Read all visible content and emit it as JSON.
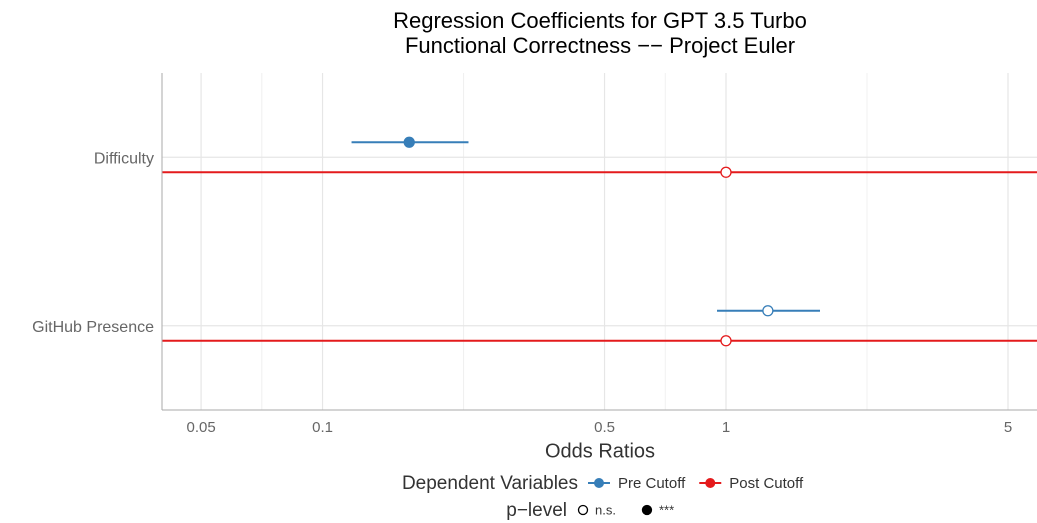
{
  "chart_data": {
    "type": "forest",
    "title": [
      "Regression Coefficients for GPT 3.5 Turbo",
      "Functional Correctness  −− Project Euler"
    ],
    "x_label": "Odds Ratios",
    "categories": [
      "Difficulty",
      "GitHub Presence"
    ],
    "series": [
      {
        "name": "Pre Cutoff",
        "color": "#377eb8",
        "values": [
          0.164,
          1.27
        ],
        "lower": [
          0.118,
          0.95
        ],
        "upper": [
          0.23,
          1.71
        ],
        "p_levels": [
          "***",
          "n.s."
        ]
      },
      {
        "name": "Post Cutoff",
        "color": "#e41a1c",
        "values": [
          1,
          1
        ],
        "lower": [
          0.001,
          0.001
        ],
        "upper": [
          1000,
          1000
        ],
        "p_levels": [
          "n.s.",
          "n.s."
        ]
      }
    ],
    "xscale": "log",
    "xlim": [
      0.04,
      5.9
    ],
    "xticks": [
      0.05,
      0.1,
      0.5,
      1,
      5
    ],
    "x_minor_grid": [
      0.0707,
      0.2236,
      0.7071,
      2.2361
    ],
    "grid": true,
    "legend_title": "Dependent Variables",
    "p_level_title": "p−level",
    "p_level_legend": [
      {
        "label": "n.s.",
        "filled": false
      },
      {
        "label": "***",
        "filled": true
      }
    ],
    "legend_position": "bottom"
  }
}
